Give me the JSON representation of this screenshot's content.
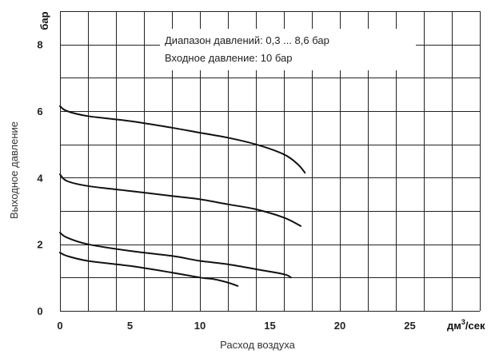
{
  "chart_data": {
    "type": "line",
    "title": "",
    "xlabel": "Расход воздуха",
    "ylabel": "Выходное давление",
    "x_unit": "дм",
    "x_unit_sup": "3",
    "x_unit_tail": "/сек",
    "y_unit": "бар",
    "xlim": [
      0,
      30
    ],
    "ylim": [
      0,
      9
    ],
    "x_ticks": [
      "0",
      "5",
      "10",
      "15",
      "20",
      "25"
    ],
    "y_ticks": [
      "0",
      "2",
      "4",
      "6",
      "8"
    ],
    "grid": true,
    "annotations": [
      "Диапазон давлений: 0,3 ... 8,6 бар",
      "Входное давление: 10 бар"
    ],
    "series": [
      {
        "x": [
          0,
          0.5,
          2,
          5,
          8,
          10,
          12,
          14,
          16,
          17,
          17.5
        ],
        "y": [
          6.15,
          6.0,
          5.85,
          5.7,
          5.5,
          5.35,
          5.2,
          5.0,
          4.7,
          4.4,
          4.15
        ]
      },
      {
        "x": [
          0,
          0.5,
          2,
          5,
          8,
          10,
          12,
          14,
          16,
          17.2
        ],
        "y": [
          4.1,
          3.9,
          3.75,
          3.6,
          3.45,
          3.35,
          3.2,
          3.05,
          2.8,
          2.55
        ]
      },
      {
        "x": [
          0,
          0.5,
          2,
          5,
          8,
          10,
          12,
          14,
          16,
          16.5
        ],
        "y": [
          2.35,
          2.2,
          2.0,
          1.8,
          1.65,
          1.5,
          1.4,
          1.25,
          1.1,
          1.0
        ]
      },
      {
        "x": [
          0,
          0.5,
          2,
          5,
          8,
          10,
          11,
          12,
          12.7
        ],
        "y": [
          1.75,
          1.65,
          1.5,
          1.35,
          1.15,
          1.0,
          0.95,
          0.85,
          0.75
        ]
      }
    ]
  }
}
